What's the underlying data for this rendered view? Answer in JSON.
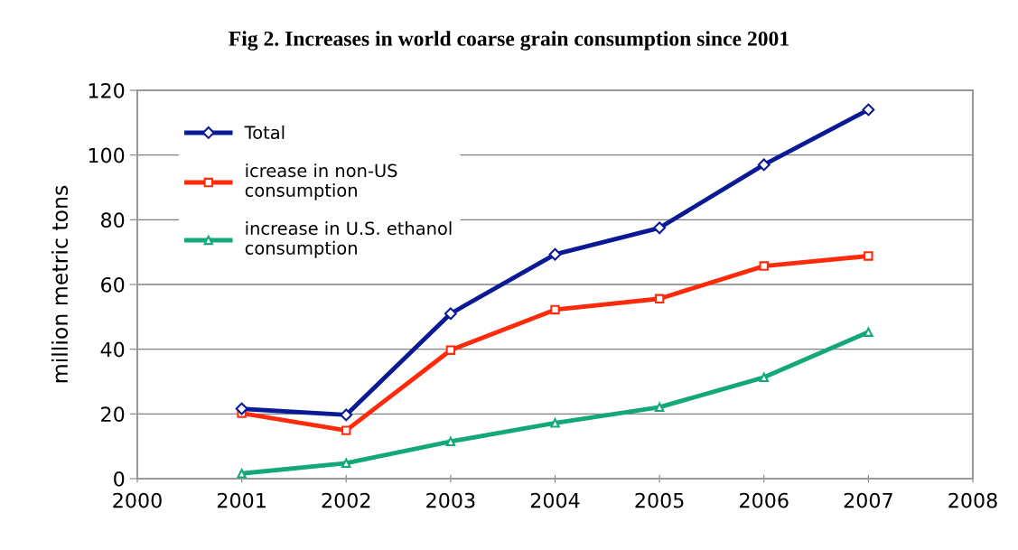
{
  "chart_data": {
    "type": "line",
    "title": "Fig 2. Increases in world coarse grain consumption since 2001",
    "ylabel": "million metric tons",
    "x": [
      2001,
      2002,
      2003,
      2004,
      2005,
      2006,
      2007
    ],
    "series": [
      {
        "name": "Total",
        "color": "#0a1a96",
        "marker": "diamond",
        "values": [
          21.6,
          19.7,
          51.0,
          69.3,
          77.5,
          97.0,
          114.0
        ]
      },
      {
        "name": "icrease in non-US\nconsumption",
        "color": "#ff2a0a",
        "marker": "square",
        "values": [
          20.2,
          14.9,
          39.7,
          52.2,
          55.6,
          65.7,
          68.8
        ]
      },
      {
        "name": "increase in U.S. ethanol\nconsumption",
        "color": "#12a87a",
        "marker": "triangle",
        "values": [
          1.6,
          4.8,
          11.5,
          17.2,
          22.1,
          31.3,
          45.3
        ]
      }
    ],
    "xlim": [
      2000,
      2008
    ],
    "xticks": [
      2000,
      2001,
      2002,
      2003,
      2004,
      2005,
      2006,
      2007,
      2008
    ],
    "ylim": [
      0,
      120
    ],
    "yticks": [
      0,
      20,
      40,
      60,
      80,
      100,
      120
    ],
    "grid": "y",
    "legend": "top left",
    "line_style": "solid"
  }
}
